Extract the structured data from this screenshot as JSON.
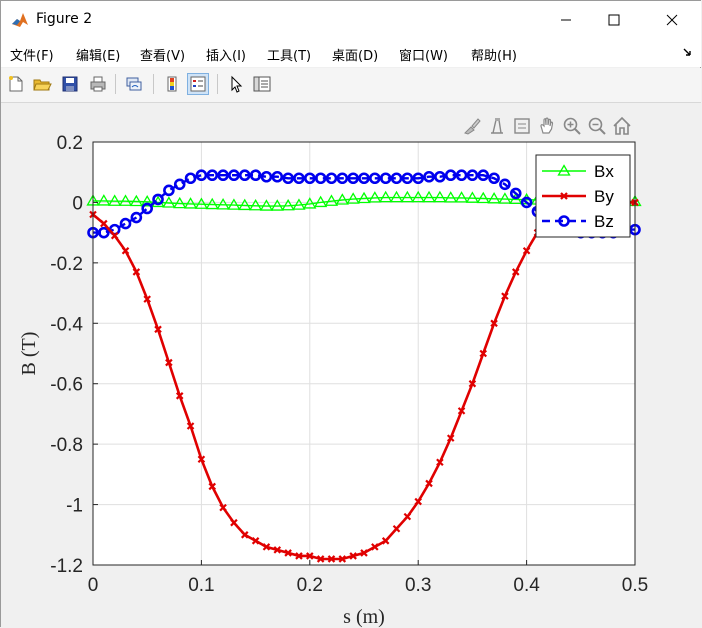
{
  "window": {
    "title": "Figure 2"
  },
  "menu": {
    "items": [
      "文件(F)",
      "编辑(E)",
      "查看(V)",
      "插入(I)",
      "工具(T)",
      "桌面(D)",
      "窗口(W)",
      "帮助(H)"
    ]
  },
  "toolbar": {
    "buttons": [
      "new-figure-icon",
      "open-file-icon",
      "save-icon",
      "print-icon",
      "link-plot-icon",
      "colorbar-icon",
      "legend-icon",
      "pointer-icon",
      "property-inspector-icon"
    ]
  },
  "axes_toolbar": {
    "buttons": [
      "brush-icon",
      "data-tips-icon",
      "rotate-icon",
      "pan-icon",
      "zoom-in-icon",
      "zoom-out-icon",
      "home-icon"
    ]
  },
  "chart_data": {
    "type": "line",
    "xlabel": "s (m)",
    "ylabel": "B (T)",
    "xlim": [
      0,
      0.5
    ],
    "ylim": [
      -1.2,
      0.2
    ],
    "xticks": [
      "0",
      "0.1",
      "0.2",
      "0.3",
      "0.4",
      "0.5"
    ],
    "yticks": [
      "0.2",
      "0",
      "-0.2",
      "-0.4",
      "-0.6",
      "-0.8",
      "-1",
      "-1.2"
    ],
    "grid": true,
    "legend_position": "top-right",
    "series": [
      {
        "name": "Bx",
        "color": "#00ff00",
        "marker": "triangle",
        "line": "solid",
        "x": [
          0,
          0.01,
          0.02,
          0.03,
          0.04,
          0.05,
          0.06,
          0.07,
          0.08,
          0.09,
          0.1,
          0.11,
          0.12,
          0.13,
          0.14,
          0.15,
          0.16,
          0.17,
          0.18,
          0.19,
          0.2,
          0.21,
          0.22,
          0.23,
          0.24,
          0.25,
          0.26,
          0.27,
          0.28,
          0.29,
          0.3,
          0.31,
          0.32,
          0.33,
          0.34,
          0.35,
          0.36,
          0.37,
          0.38,
          0.39,
          0.4,
          0.41,
          0.42,
          0.43,
          0.44,
          0.45,
          0.46,
          0.47,
          0.48,
          0.49,
          0.5
        ],
        "y": [
          0.005,
          0.005,
          0.004,
          0.004,
          0.003,
          0.002,
          0.0,
          -0.002,
          -0.004,
          -0.005,
          -0.006,
          -0.007,
          -0.008,
          -0.009,
          -0.01,
          -0.011,
          -0.012,
          -0.012,
          -0.011,
          -0.009,
          -0.005,
          0.0,
          0.004,
          0.008,
          0.011,
          0.013,
          0.015,
          0.016,
          0.016,
          0.016,
          0.016,
          0.016,
          0.016,
          0.015,
          0.015,
          0.014,
          0.013,
          0.012,
          0.011,
          0.01,
          0.009,
          0.008,
          0.007,
          0.006,
          0.006,
          0.005,
          0.005,
          0.005,
          0.004,
          0.004,
          0.003
        ]
      },
      {
        "name": "By",
        "color": "#e00000",
        "marker": "x",
        "line": "solid",
        "x": [
          0,
          0.01,
          0.02,
          0.03,
          0.04,
          0.05,
          0.06,
          0.07,
          0.08,
          0.09,
          0.1,
          0.11,
          0.12,
          0.13,
          0.14,
          0.15,
          0.16,
          0.17,
          0.18,
          0.19,
          0.2,
          0.21,
          0.22,
          0.23,
          0.24,
          0.25,
          0.26,
          0.27,
          0.28,
          0.29,
          0.3,
          0.31,
          0.32,
          0.33,
          0.34,
          0.35,
          0.36,
          0.37,
          0.38,
          0.39,
          0.4,
          0.41,
          0.42,
          0.43,
          0.44,
          0.45,
          0.46,
          0.47,
          0.48,
          0.49,
          0.5
        ],
        "y": [
          -0.04,
          -0.07,
          -0.11,
          -0.16,
          -0.23,
          -0.32,
          -0.42,
          -0.53,
          -0.64,
          -0.74,
          -0.85,
          -0.94,
          -1.01,
          -1.06,
          -1.1,
          -1.12,
          -1.14,
          -1.15,
          -1.16,
          -1.17,
          -1.17,
          -1.18,
          -1.18,
          -1.18,
          -1.17,
          -1.16,
          -1.14,
          -1.12,
          -1.08,
          -1.04,
          -0.99,
          -0.93,
          -0.86,
          -0.78,
          -0.69,
          -0.6,
          -0.5,
          -0.4,
          -0.31,
          -0.23,
          -0.16,
          -0.1,
          -0.05,
          -0.02,
          0.0,
          0.0,
          0.0,
          0.0,
          0.0,
          0.0,
          0.0
        ]
      },
      {
        "name": "Bz",
        "color": "#0000ee",
        "marker": "circle",
        "line": "dashed",
        "x": [
          0,
          0.01,
          0.02,
          0.03,
          0.04,
          0.05,
          0.06,
          0.07,
          0.08,
          0.09,
          0.1,
          0.11,
          0.12,
          0.13,
          0.14,
          0.15,
          0.16,
          0.17,
          0.18,
          0.19,
          0.2,
          0.21,
          0.22,
          0.23,
          0.24,
          0.25,
          0.26,
          0.27,
          0.28,
          0.29,
          0.3,
          0.31,
          0.32,
          0.33,
          0.34,
          0.35,
          0.36,
          0.37,
          0.38,
          0.39,
          0.4,
          0.41,
          0.42,
          0.43,
          0.44,
          0.45,
          0.46,
          0.47,
          0.48,
          0.49,
          0.5
        ],
        "y": [
          -0.1,
          -0.1,
          -0.09,
          -0.07,
          -0.05,
          -0.02,
          0.01,
          0.04,
          0.06,
          0.08,
          0.09,
          0.09,
          0.09,
          0.09,
          0.09,
          0.09,
          0.085,
          0.085,
          0.08,
          0.08,
          0.08,
          0.08,
          0.08,
          0.08,
          0.08,
          0.08,
          0.08,
          0.08,
          0.08,
          0.08,
          0.08,
          0.085,
          0.085,
          0.09,
          0.09,
          0.09,
          0.09,
          0.08,
          0.06,
          0.03,
          0.0,
          -0.03,
          -0.06,
          -0.08,
          -0.09,
          -0.1,
          -0.1,
          -0.1,
          -0.1,
          -0.09,
          -0.09
        ]
      }
    ]
  }
}
